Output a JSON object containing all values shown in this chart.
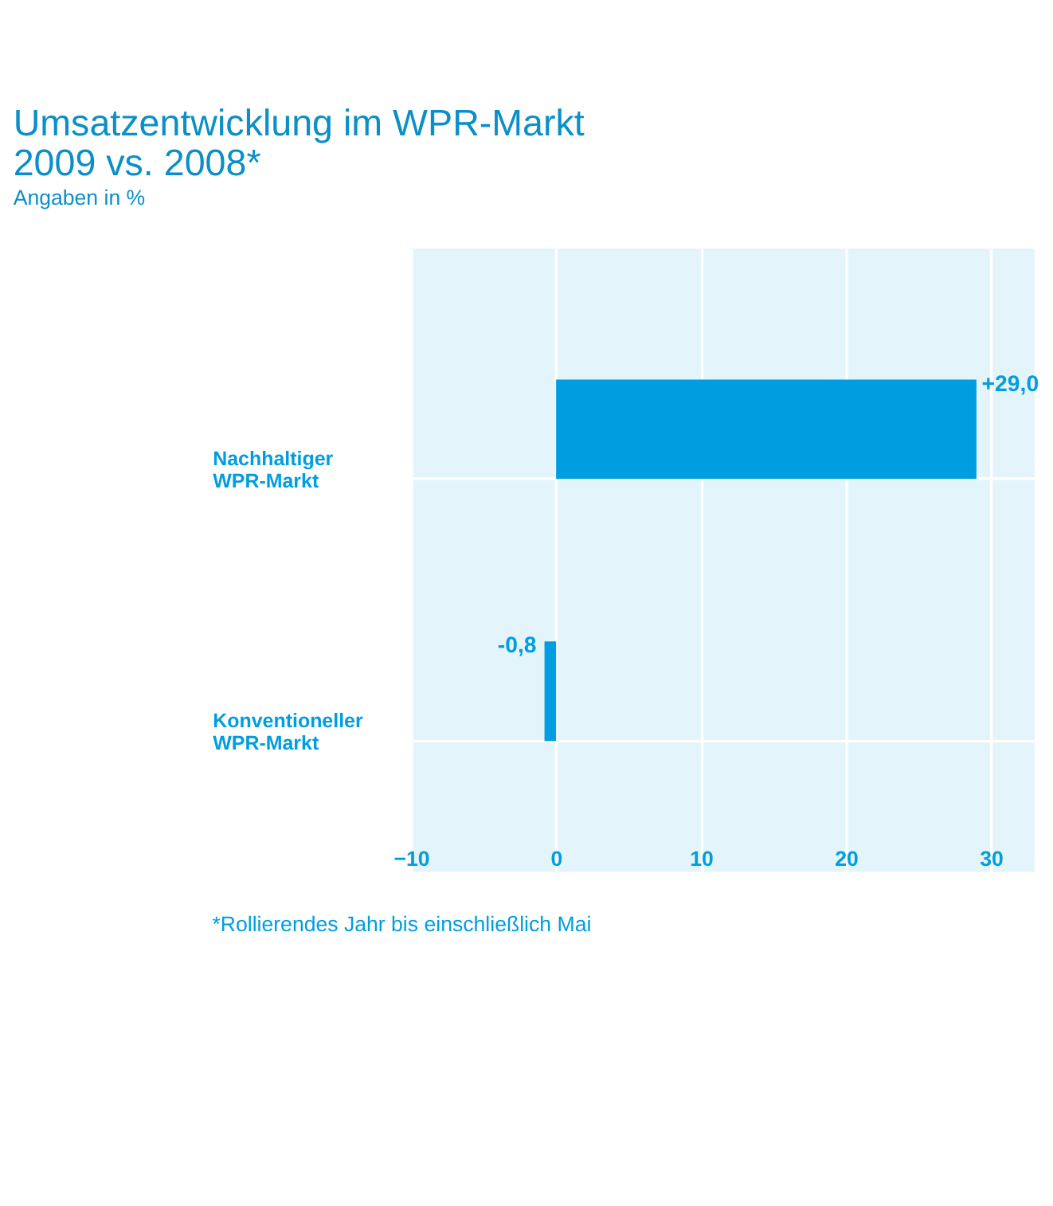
{
  "chart_data": {
    "type": "bar",
    "orientation": "horizontal",
    "title": "Umsatzentwicklung im WPR-Markt 2009 vs. 2008*",
    "subtitle": "Angaben in %",
    "categories": [
      "Nachhaltiger WPR-Markt",
      "Konventioneller WPR-Markt"
    ],
    "values": [
      29.0,
      -0.8
    ],
    "value_labels": [
      "+29,0",
      "-0,8"
    ],
    "color": "#009ee0",
    "xlim": [
      -10,
      33
    ],
    "xticks": [
      -10,
      0,
      10,
      20,
      30
    ],
    "grid": true,
    "annotations": [
      "*Rollierendes Jahr bis einschließlich Mai"
    ]
  }
}
